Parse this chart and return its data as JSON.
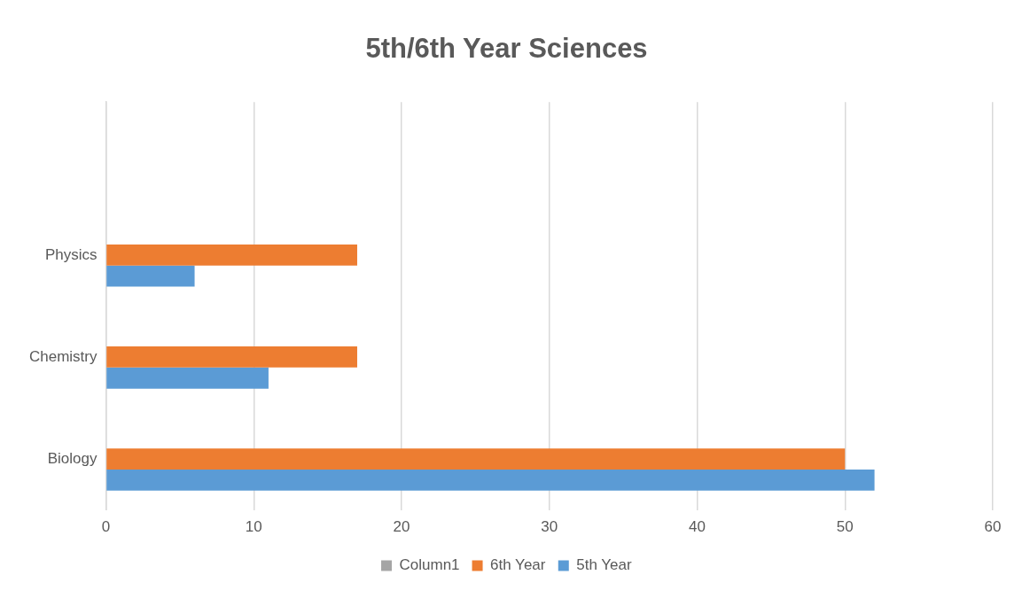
{
  "chart_data": {
    "type": "bar",
    "title": "5th/6th Year Sciences",
    "orientation": "horizontal",
    "categories": [
      null,
      "Physics",
      "Chemistry",
      "Biology"
    ],
    "series": [
      {
        "name": "Column1",
        "color": "#a5a5a5",
        "values": [
          null,
          null,
          null,
          null
        ]
      },
      {
        "name": "6th Year",
        "color": "#ed7d31",
        "values": [
          null,
          17,
          17,
          50
        ]
      },
      {
        "name": "5th Year",
        "color": "#5b9bd5",
        "values": [
          null,
          6,
          11,
          52
        ]
      }
    ],
    "xlim": [
      0,
      60
    ],
    "xticks": [
      0,
      10,
      20,
      30,
      40,
      50,
      60
    ],
    "grid": "x",
    "legend": "bottom"
  }
}
